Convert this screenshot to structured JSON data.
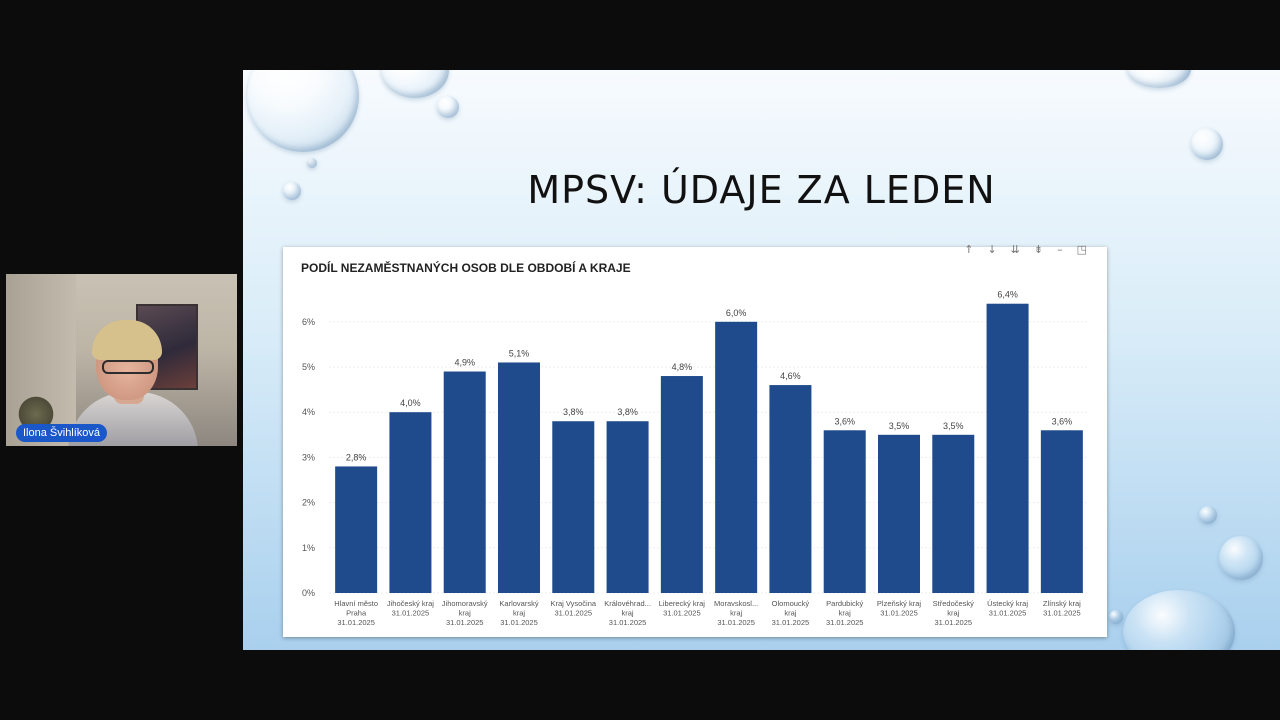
{
  "meeting": {
    "participant_name": "Ilona Švihlíková"
  },
  "slide": {
    "title": "MPSV: ÚDAJE ZA LEDEN"
  },
  "chart_toolbar": {
    "icons": [
      "arrow-up-icon",
      "arrow-down-icon",
      "drill-down-icon",
      "expand-all-icon",
      "filter-icon",
      "focus-mode-icon"
    ]
  },
  "chart_data": {
    "type": "bar",
    "title": "PODÍL NEZAMĚSTNANÝCH OSOB DLE OBDOBÍ A KRAJE",
    "xlabel": "",
    "ylabel": "",
    "ylim": [
      0,
      6.5
    ],
    "yticks": [
      "0%",
      "1%",
      "2%",
      "3%",
      "4%",
      "5%",
      "6%"
    ],
    "grid": true,
    "bar_color": "#1f4a8c",
    "categories": [
      [
        "Hlavní město",
        "Praha",
        "31.01.2025"
      ],
      [
        "Jihočeský kraj",
        "31.01.2025"
      ],
      [
        "Jihomoravský",
        "kraj",
        "31.01.2025"
      ],
      [
        "Karlovarský",
        "kraj",
        "31.01.2025"
      ],
      [
        "Kraj Vysočina",
        "31.01.2025"
      ],
      [
        "Královéhrad...",
        "kraj",
        "31.01.2025"
      ],
      [
        "Liberecký kraj",
        "31.01.2025"
      ],
      [
        "Moravskosl...",
        "kraj",
        "31.01.2025"
      ],
      [
        "Olomoucký",
        "kraj",
        "31.01.2025"
      ],
      [
        "Pardubický",
        "kraj",
        "31.01.2025"
      ],
      [
        "Plzeňský kraj",
        "31.01.2025"
      ],
      [
        "Středočeský",
        "kraj",
        "31.01.2025"
      ],
      [
        "Ústecký kraj",
        "31.01.2025"
      ],
      [
        "Zlínský kraj",
        "31.01.2025"
      ]
    ],
    "values": [
      2.8,
      4.0,
      4.9,
      5.1,
      3.8,
      3.8,
      4.8,
      6.0,
      4.6,
      3.6,
      3.5,
      3.5,
      6.4,
      3.6
    ],
    "data_labels": [
      "2,8%",
      "4,0%",
      "4,9%",
      "5,1%",
      "3,8%",
      "3,8%",
      "4,8%",
      "6,0%",
      "4,6%",
      "3,6%",
      "3,5%",
      "3,5%",
      "6,4%",
      "3,6%"
    ]
  }
}
